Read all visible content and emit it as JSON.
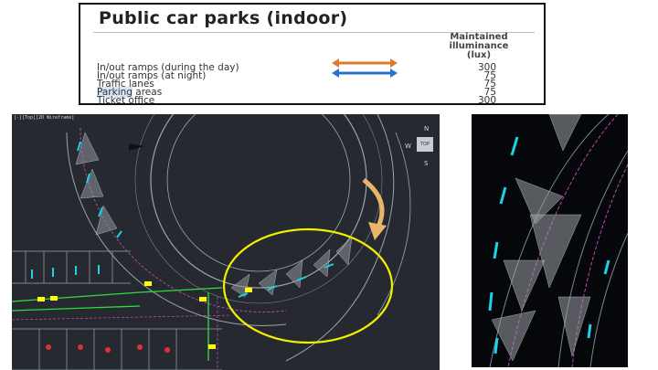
{
  "table": {
    "title": "Public car parks (indoor)",
    "header": [
      "Maintained",
      "illuminance",
      "(lux)"
    ],
    "rows": [
      {
        "label": "In/out ramps (during the day)",
        "value": "300"
      },
      {
        "label": "In/out ramps (at night)",
        "value": "75"
      },
      {
        "label": "Traffic lanes",
        "value": "75"
      },
      {
        "label": "Parking areas",
        "value": "75"
      },
      {
        "label": "Ticket office",
        "value": "300"
      }
    ],
    "highlight_word": "Parking",
    "highlight_rest": " areas",
    "arrow_colors": {
      "orange": "#e07a2e",
      "blue": "#2f6fd0"
    }
  },
  "cad": {
    "viewport_label": "[-][Top][2D Wireframe]",
    "compass": {
      "north": "N",
      "west": "W",
      "south": "S",
      "cube_face": "TOP"
    },
    "colors": {
      "background": "#262a30",
      "lines": "#9aa3ad",
      "cyan": "#19d3e6",
      "magenta": "#d14cc4",
      "green": "#2fdc43",
      "yellow": "#ffff00",
      "circle": "#f0f000",
      "arrow": "#e8b56a"
    }
  }
}
